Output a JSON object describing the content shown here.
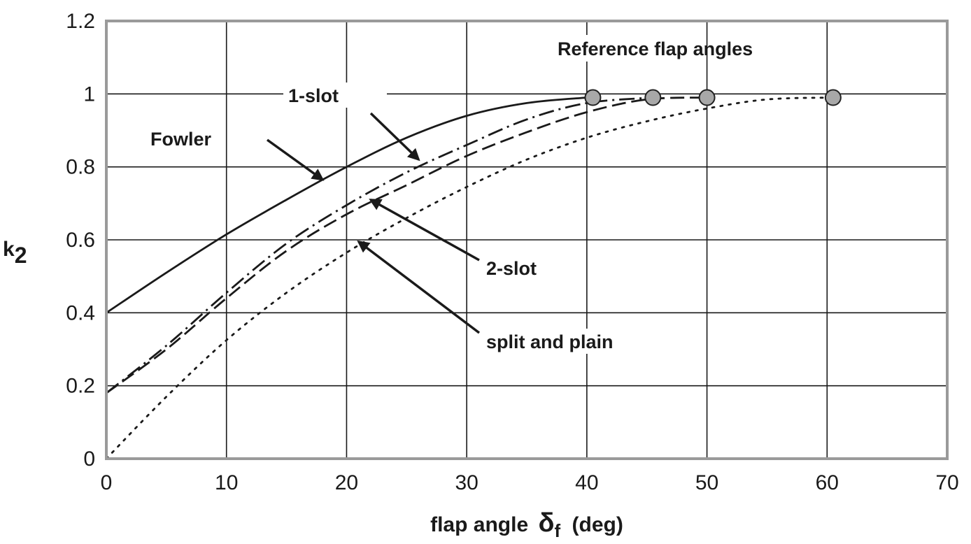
{
  "chart_data": {
    "type": "line",
    "xlabel": "flap angle",
    "xlabel_symbol": "δ",
    "xlabel_sub": "f",
    "xlabel_unit": "(deg)",
    "ylabel": "k",
    "ylabel_sub": "2",
    "xlim": [
      0,
      70
    ],
    "ylim": [
      0,
      1.2
    ],
    "x_ticks": [
      "0",
      "10",
      "20",
      "30",
      "40",
      "50",
      "60",
      "70"
    ],
    "y_ticks": [
      "0",
      "0.2",
      "0.4",
      "0.6",
      "0.8",
      "1",
      "1.2"
    ],
    "grid": true,
    "series": [
      {
        "name": "Fowler",
        "style": "solid",
        "x": [
          0,
          5,
          10,
          15,
          20,
          25,
          30,
          35,
          40
        ],
        "y": [
          0.4,
          0.51,
          0.615,
          0.71,
          0.8,
          0.88,
          0.94,
          0.975,
          0.99
        ]
      },
      {
        "name": "1-slot",
        "style": "dashdot",
        "x": [
          0,
          5,
          10,
          15,
          20,
          25,
          30,
          35,
          40,
          45.5
        ],
        "y": [
          0.18,
          0.31,
          0.455,
          0.59,
          0.695,
          0.785,
          0.86,
          0.93,
          0.975,
          0.99
        ]
      },
      {
        "name": "2-slot",
        "style": "dashed",
        "x": [
          0,
          5,
          10,
          15,
          20,
          25,
          30,
          35,
          40,
          45,
          50
        ],
        "y": [
          0.18,
          0.3,
          0.44,
          0.57,
          0.67,
          0.75,
          0.83,
          0.895,
          0.95,
          0.985,
          0.99
        ]
      },
      {
        "name": "split and plain",
        "style": "dotted",
        "x": [
          0,
          5,
          10,
          15,
          20,
          25,
          30,
          35,
          40,
          45,
          50,
          55,
          60.5
        ],
        "y": [
          0.0,
          0.17,
          0.325,
          0.455,
          0.565,
          0.66,
          0.745,
          0.82,
          0.88,
          0.925,
          0.96,
          0.985,
          0.99
        ]
      }
    ],
    "reference_points": {
      "label": "Reference flap angles",
      "x": [
        40.5,
        45.5,
        50,
        60.5
      ],
      "y": [
        0.99,
        0.99,
        0.99,
        0.99
      ]
    },
    "annotations": [
      {
        "text": "Fowler",
        "arrow_to": [
          18,
          0.765
        ]
      },
      {
        "text": "1-slot",
        "arrow_to": [
          26,
          0.82
        ]
      },
      {
        "text": "2-slot",
        "arrow_to": [
          22,
          0.71
        ]
      },
      {
        "text": "split and plain",
        "arrow_to": [
          21,
          0.595
        ]
      }
    ],
    "colors": {
      "lines": "#1a1a1a",
      "marker_fill": "#a8a8a8",
      "frame": "#9a9a9a"
    }
  }
}
